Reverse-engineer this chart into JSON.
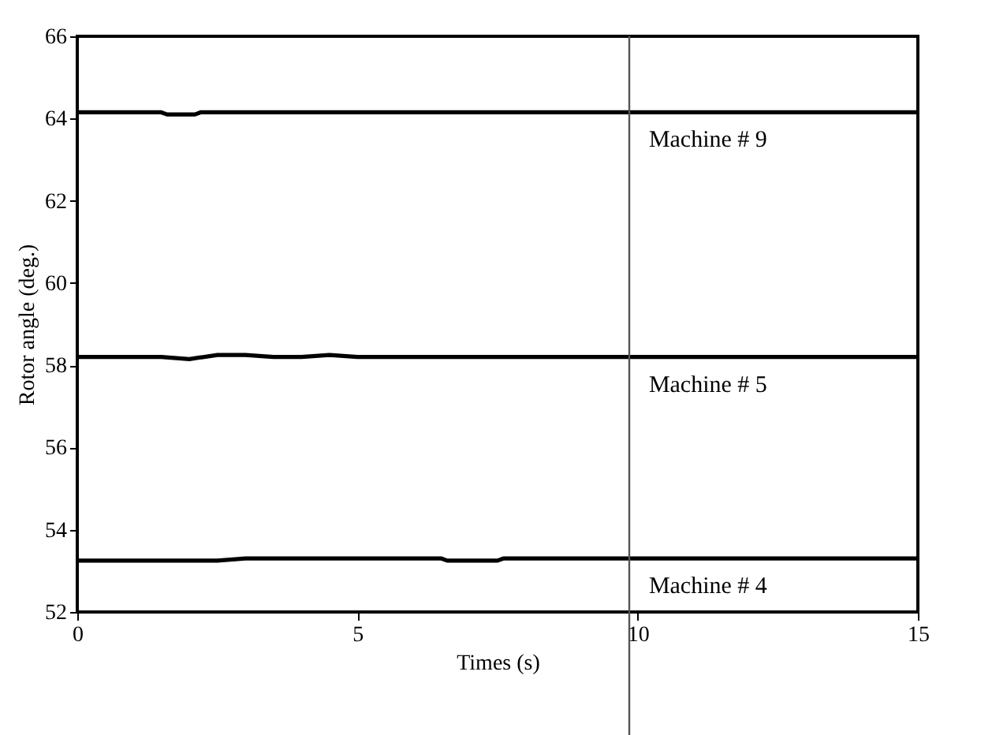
{
  "chart_data": {
    "type": "line",
    "xlabel": "Times (s)",
    "ylabel": "Rotor angle (deg.)",
    "xlim": [
      0,
      15
    ],
    "ylim": [
      52,
      66
    ],
    "xticks": [
      0,
      5,
      10,
      15
    ],
    "yticks": [
      52,
      54,
      56,
      58,
      60,
      62,
      64,
      66
    ],
    "marker": "none",
    "line_style": "solid",
    "series": [
      {
        "name": "Machine # 9",
        "color": "#000000",
        "x": [
          0,
          1.5,
          1.6,
          2.1,
          2.2,
          15
        ],
        "values": [
          64.15,
          64.15,
          64.1,
          64.1,
          64.15,
          64.15
        ]
      },
      {
        "name": "Machine # 5",
        "color": "#000000",
        "x": [
          0,
          1.5,
          2,
          2.5,
          3,
          3.5,
          4,
          4.5,
          5,
          15
        ],
        "values": [
          58.2,
          58.2,
          58.15,
          58.25,
          58.25,
          58.2,
          58.2,
          58.25,
          58.2,
          58.2
        ]
      },
      {
        "name": "Machine # 4",
        "color": "#000000",
        "x": [
          0,
          2.5,
          3,
          6.5,
          6.6,
          7.5,
          7.6,
          15
        ],
        "values": [
          53.25,
          53.25,
          53.3,
          53.3,
          53.25,
          53.25,
          53.3,
          53.3
        ]
      }
    ],
    "ref_lines": [
      {
        "axis": "x",
        "value": 9.85,
        "color": "#555555"
      }
    ]
  }
}
